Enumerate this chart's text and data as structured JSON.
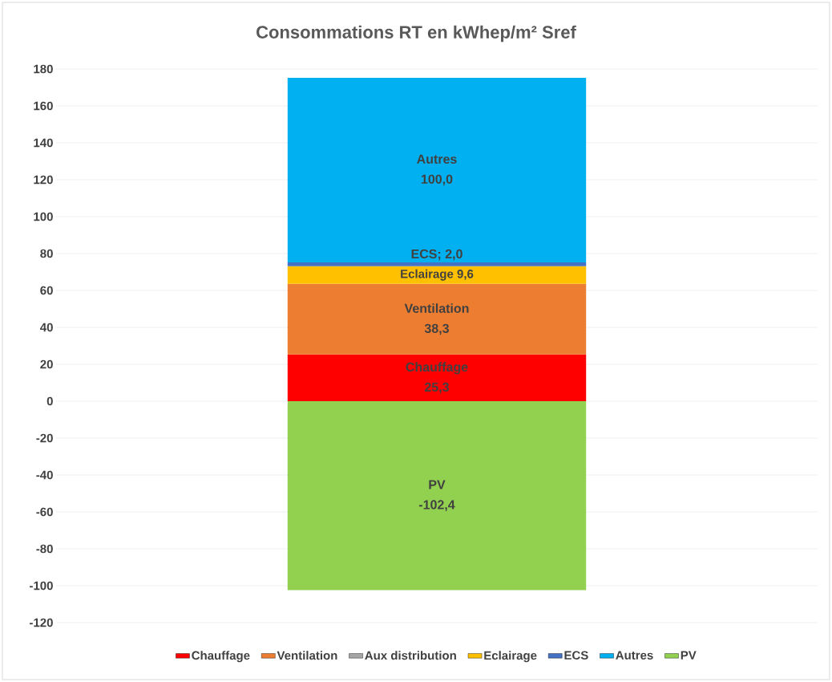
{
  "chart_data": {
    "type": "bar",
    "title": "Consommations RT en kWhep/m² Sref",
    "categories": [
      null
    ],
    "stacked": true,
    "ylim": [
      -120,
      180
    ],
    "yticks": [
      -120,
      -100,
      -80,
      -60,
      -40,
      -20,
      0,
      20,
      40,
      60,
      80,
      100,
      120,
      140,
      160,
      180
    ],
    "grid": "y",
    "legend": "bottom",
    "series": [
      {
        "name": "Chauffage",
        "color": "#ff0000",
        "values": [
          25.3
        ],
        "value_labels": [
          "25,3"
        ]
      },
      {
        "name": "Ventilation",
        "color": "#ed7d31",
        "values": [
          38.3
        ],
        "value_labels": [
          "38,3"
        ]
      },
      {
        "name": "Aux distribution",
        "color": "#a5a5a5",
        "values": [
          0
        ],
        "value_labels": [
          null
        ]
      },
      {
        "name": "Eclairage",
        "color": "#ffc000",
        "values": [
          9.6
        ],
        "value_labels": [
          "9,6"
        ]
      },
      {
        "name": "ECS",
        "color": "#4472c4",
        "values": [
          2.0
        ],
        "value_labels": [
          "ECS; 2,0"
        ]
      },
      {
        "name": "Autres",
        "color": "#00b0f0",
        "values": [
          100.0
        ],
        "value_labels": [
          "100,0"
        ]
      },
      {
        "name": "PV",
        "color": "#92d050",
        "values": [
          -102.4
        ],
        "value_labels": [
          "-102,4"
        ]
      }
    ]
  }
}
